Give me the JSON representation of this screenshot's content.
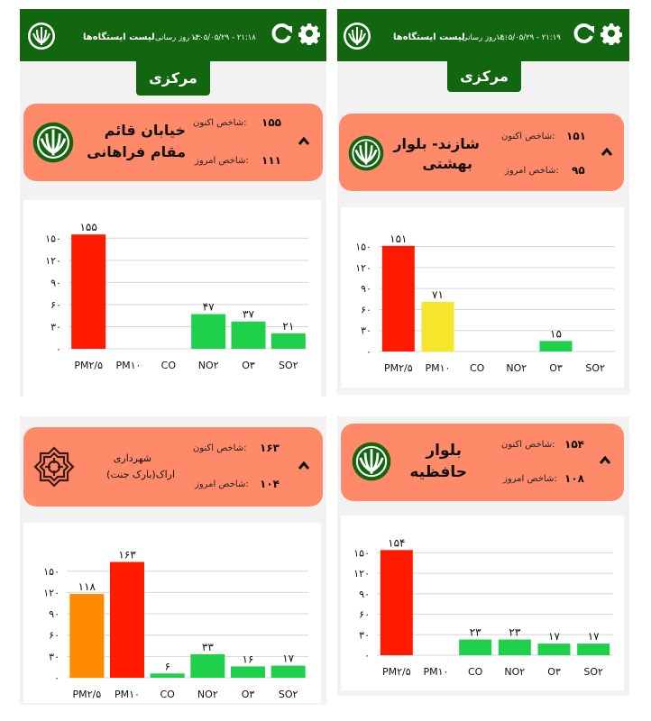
{
  "header": {
    "list_label": "لیست ایستگاه‌ها",
    "updated_label": "به روز رسانی:",
    "tab_label": "مرکزی"
  },
  "panels": [
    {
      "date_time": "۱۴۰۵/۰۵/۲۹ - ۲۱:۱۸",
      "station_line1": "خیابان قائم",
      "station_line2": "مقام فراهانی",
      "current_label": "شاخص اکنون:",
      "current_value": "۱۵۵",
      "today_label": "شاخص امروز:",
      "today_value": "۱۱۱",
      "logo": "doe-emblem-icon"
    },
    {
      "date_time": "۱۴۰۵/۰۵/۲۹ - ۲۱:۱۹",
      "station_line1": "شازند- بلوار",
      "station_line2": "بهشتی",
      "current_label": "شاخص اکنون:",
      "current_value": "۱۵۱",
      "today_label": "شاخص امروز:",
      "today_value": "۹۵",
      "logo": "doe-emblem-icon"
    },
    {
      "station_line1": "شهرداری",
      "station_line2": "اراک(بارک جنت)",
      "current_label": "شاخص اکنون:",
      "current_value": "۱۶۳",
      "today_label": "شاخص امروز:",
      "today_value": "۱۰۴",
      "logo": "municipality-emblem-icon"
    },
    {
      "station_line1": "بلوار",
      "station_line2": "حافظیه",
      "current_label": "شاخص اکنون:",
      "current_value": "۱۵۴",
      "today_label": "شاخص امروز:",
      "today_value": "۱۰۸",
      "logo": "doe-emblem-icon"
    }
  ],
  "colors": {
    "header_green": "#12660f",
    "card_salmon": "#fe8a6a",
    "red": "#ff1a00",
    "yellow": "#f5e62b",
    "orange": "#ff8a00",
    "green": "#1fd14a"
  },
  "chart_data": [
    {
      "type": "bar",
      "categories": [
        "PM۲/۵",
        "PM۱۰",
        "CO",
        "NO۲",
        "O۳",
        "SO۲"
      ],
      "values": [
        155,
        null,
        null,
        47,
        37,
        21
      ],
      "value_labels": [
        "۱۵۵",
        "",
        "",
        "۴۷",
        "۳۷",
        "۲۱"
      ],
      "bar_colors": [
        "#ff1a00",
        null,
        null,
        "#1fd14a",
        "#1fd14a",
        "#1fd14a"
      ],
      "yticks": [
        "۰",
        "۳۰",
        "۶۰",
        "۹۰",
        "۱۲۰",
        "۱۵۰"
      ],
      "ylim": [
        0,
        165
      ]
    },
    {
      "type": "bar",
      "categories": [
        "PM۲/۵",
        "PM۱۰",
        "CO",
        "NO۲",
        "O۳",
        "SO۲"
      ],
      "values": [
        151,
        71,
        null,
        null,
        15,
        null
      ],
      "value_labels": [
        "۱۵۱",
        "۷۱",
        "",
        "",
        "۱۵",
        ""
      ],
      "bar_colors": [
        "#ff1a00",
        "#f5e62b",
        null,
        null,
        "#1fd14a",
        null
      ],
      "yticks": [
        "۰",
        "۳۰",
        "۶۰",
        "۹۰",
        "۱۲۰",
        "۱۵۰"
      ],
      "ylim": [
        0,
        165
      ]
    },
    {
      "type": "bar",
      "categories": [
        "PM۲/۵",
        "PM۱۰",
        "CO",
        "NO۲",
        "O۳",
        "SO۲"
      ],
      "values": [
        118,
        163,
        6,
        33,
        16,
        17
      ],
      "value_labels": [
        "۱۱۸",
        "۱۶۳",
        "۶",
        "۳۳",
        "۱۶",
        "۱۷"
      ],
      "bar_colors": [
        "#ff8a00",
        "#ff1a00",
        "#1fd14a",
        "#1fd14a",
        "#1fd14a",
        "#1fd14a"
      ],
      "yticks": [
        "۰",
        "۳۰",
        "۶۰",
        "۹۰",
        "۱۲۰",
        "۱۵۰"
      ],
      "ylim": [
        0,
        170
      ]
    },
    {
      "type": "bar",
      "categories": [
        "PM۲/۵",
        "PM۱۰",
        "CO",
        "NO۲",
        "O۳",
        "SO۲"
      ],
      "values": [
        154,
        null,
        23,
        23,
        17,
        17
      ],
      "value_labels": [
        "۱۵۴",
        "",
        "۲۳",
        "۲۳",
        "۱۷",
        "۱۷"
      ],
      "bar_colors": [
        "#ff1a00",
        null,
        "#1fd14a",
        "#1fd14a",
        "#1fd14a",
        "#1fd14a"
      ],
      "yticks": [
        "۰",
        "۳۰",
        "۶۰",
        "۹۰",
        "۱۲۰",
        "۱۵۰"
      ],
      "ylim": [
        0,
        165
      ]
    }
  ]
}
